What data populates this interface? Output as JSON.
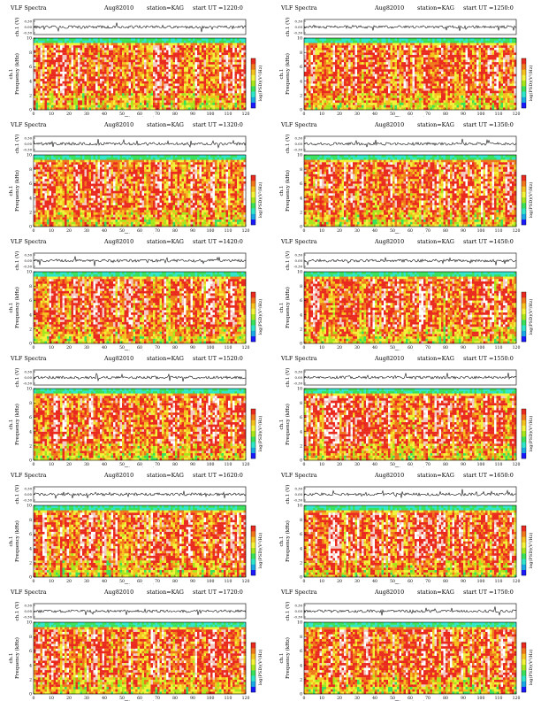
{
  "labels": {
    "title": "VLF Spectra",
    "date": "Aug82010",
    "station": "station=KAG",
    "start_prefix": "start  UT =",
    "trace_ylabel": "ch.1 (V)",
    "spec_ylabel": "Frequency  (kHz)",
    "spec_ylabel_ch": "ch.1",
    "xlabel": "Time  (sec)",
    "cbar_label": "log(PSD)(V²/Hz)"
  },
  "colors": {
    "background": "#ffffff",
    "axis": "#000000",
    "trace": "#111111",
    "spectrogram_palette": [
      "#1a1aff",
      "#19a7e6",
      "#2fe6c8",
      "#39e05a",
      "#a8e61c",
      "#f2f23a",
      "#f6c21e",
      "#f0781a",
      "#ea2a1e",
      "#f4c9c2",
      "#ffffff"
    ]
  },
  "chart_data": [
    {
      "type": "heatmap",
      "panel": "left",
      "row": 1,
      "title": "VLF Spectra",
      "date": "Aug82010",
      "station": "station=KAG",
      "start_ut": "1220:0",
      "xlabel": "Time  (sec)",
      "ylabel": "Frequency  (kHz)",
      "xlim": [
        0,
        120
      ],
      "ylim": [
        0,
        10
      ],
      "trace_ylim": [
        0.3,
        -0.3
      ],
      "xticks": [
        0,
        10,
        20,
        30,
        40,
        50,
        60,
        70,
        80,
        90,
        100,
        110,
        120
      ],
      "yticks": [
        0,
        2,
        4,
        6,
        8,
        10
      ],
      "trace_yticks": [
        "0.30",
        "0.00",
        "-0.30"
      ],
      "colorbar": "log(PSD)(V²/Hz)"
    },
    {
      "type": "heatmap",
      "panel": "right",
      "row": 1,
      "title": "VLF Spectra",
      "date": "Aug82010",
      "station": "station=KAG",
      "start_ut": "1250:0",
      "xlabel": "Time  (sec)",
      "ylabel": "Frequency  (kHz)",
      "xlim": [
        0,
        120
      ],
      "ylim": [
        0,
        10
      ],
      "trace_ylim": [
        0.3,
        -0.3
      ],
      "xticks": [
        0,
        10,
        20,
        30,
        40,
        50,
        60,
        70,
        80,
        90,
        100,
        110,
        120
      ],
      "yticks": [
        0,
        2,
        4,
        6,
        8,
        10
      ],
      "trace_yticks": [
        "0.30",
        "0.00",
        "-0.30"
      ],
      "colorbar": "log(PSD)(V²/Hz)"
    },
    {
      "type": "heatmap",
      "panel": "left",
      "row": 2,
      "title": "VLF Spectra",
      "date": "Aug82010",
      "station": "station=KAG",
      "start_ut": "1320:0",
      "xlabel": "Time  (sec)",
      "ylabel": "Frequency  (kHz)",
      "xlim": [
        0,
        120
      ],
      "ylim": [
        0,
        10
      ],
      "trace_ylim": [
        0.3,
        -0.3
      ],
      "xticks": [
        0,
        10,
        20,
        30,
        40,
        50,
        60,
        70,
        80,
        90,
        100,
        110,
        120
      ],
      "yticks": [
        0,
        2,
        4,
        6,
        8,
        10
      ],
      "trace_yticks": [
        "0.30",
        "0.00",
        "-0.30"
      ],
      "colorbar": "log(PSD)(V²/Hz)"
    },
    {
      "type": "heatmap",
      "panel": "right",
      "row": 2,
      "title": "VLF Spectra",
      "date": "Aug82010",
      "station": "station=KAG",
      "start_ut": "1350:0",
      "xlabel": "Time  (sec)",
      "ylabel": "Frequency  (kHz)",
      "xlim": [
        0,
        120
      ],
      "ylim": [
        0,
        10
      ],
      "trace_ylim": [
        0.3,
        -0.3
      ],
      "xticks": [
        0,
        10,
        20,
        30,
        40,
        50,
        60,
        70,
        80,
        90,
        100,
        110,
        120
      ],
      "yticks": [
        0,
        2,
        4,
        6,
        8,
        10
      ],
      "trace_yticks": [
        "0.30",
        "0.00",
        "-0.30"
      ],
      "colorbar": "log(PSD)(V²/Hz)"
    },
    {
      "type": "heatmap",
      "panel": "left",
      "row": 3,
      "title": "VLF Spectra",
      "date": "Aug82010",
      "station": "station=KAG",
      "start_ut": "1420:0",
      "xlabel": "Time  (sec)",
      "ylabel": "Frequency  (kHz)",
      "xlim": [
        0,
        120
      ],
      "ylim": [
        0,
        10
      ],
      "trace_ylim": [
        0.3,
        -0.3
      ],
      "xticks": [
        0,
        10,
        20,
        30,
        40,
        50,
        60,
        70,
        80,
        90,
        100,
        110,
        120
      ],
      "yticks": [
        0,
        2,
        4,
        6,
        8,
        10
      ],
      "trace_yticks": [
        "0.30",
        "0.00",
        "-0.30"
      ],
      "colorbar": "log(PSD)(V²/Hz)"
    },
    {
      "type": "heatmap",
      "panel": "right",
      "row": 3,
      "title": "VLF Spectra",
      "date": "Aug82010",
      "station": "station=KAG",
      "start_ut": "1450:0",
      "xlabel": "Time  (sec)",
      "ylabel": "Frequency  (kHz)",
      "xlim": [
        0,
        120
      ],
      "ylim": [
        0,
        10
      ],
      "trace_ylim": [
        0.3,
        -0.3
      ],
      "xticks": [
        0,
        10,
        20,
        30,
        40,
        50,
        60,
        70,
        80,
        90,
        100,
        110,
        120
      ],
      "yticks": [
        0,
        2,
        4,
        6,
        8,
        10
      ],
      "trace_yticks": [
        "0.30",
        "0.00",
        "-0.30"
      ],
      "colorbar": "log(PSD)(V²/Hz)"
    },
    {
      "type": "heatmap",
      "panel": "left",
      "row": 4,
      "title": "VLF Spectra",
      "date": "Aug82010",
      "station": "station=KAG",
      "start_ut": "1520:0",
      "xlabel": "Time  (sec)",
      "ylabel": "Frequency  (kHz)",
      "xlim": [
        0,
        120
      ],
      "ylim": [
        0,
        10
      ],
      "trace_ylim": [
        0.3,
        -0.3
      ],
      "xticks": [
        0,
        10,
        20,
        30,
        40,
        50,
        60,
        70,
        80,
        90,
        100,
        110,
        120
      ],
      "yticks": [
        0,
        2,
        4,
        6,
        8,
        10
      ],
      "trace_yticks": [
        "0.30",
        "0.00",
        "-0.30"
      ],
      "colorbar": "log(PSD)(V²/Hz)"
    },
    {
      "type": "heatmap",
      "panel": "right",
      "row": 4,
      "title": "VLF Spectra",
      "date": "Aug82010",
      "station": "station=KAG",
      "start_ut": "1550:0",
      "xlabel": "Time  (sec)",
      "ylabel": "Frequency  (kHz)",
      "xlim": [
        0,
        120
      ],
      "ylim": [
        0,
        10
      ],
      "trace_ylim": [
        0.3,
        -0.3
      ],
      "xticks": [
        0,
        10,
        20,
        30,
        40,
        50,
        60,
        70,
        80,
        90,
        100,
        110,
        120
      ],
      "yticks": [
        0,
        2,
        4,
        6,
        8,
        10
      ],
      "trace_yticks": [
        "0.30",
        "0.00",
        "-0.30"
      ],
      "colorbar": "log(PSD)(V²/Hz)"
    },
    {
      "type": "heatmap",
      "panel": "left",
      "row": 5,
      "title": "VLF Spectra",
      "date": "Aug82010",
      "station": "station=KAG",
      "start_ut": "1620:0",
      "xlabel": "Time  (sec)",
      "ylabel": "Frequency  (kHz)",
      "xlim": [
        0,
        120
      ],
      "ylim": [
        0,
        10
      ],
      "trace_ylim": [
        0.3,
        -0.3
      ],
      "xticks": [
        0,
        10,
        20,
        30,
        40,
        50,
        60,
        70,
        80,
        90,
        100,
        110,
        120
      ],
      "yticks": [
        0,
        2,
        4,
        6,
        8,
        10
      ],
      "trace_yticks": [
        "0.30",
        "0.00",
        "-0.30"
      ],
      "colorbar": "log(PSD)(V²/Hz)"
    },
    {
      "type": "heatmap",
      "panel": "right",
      "row": 5,
      "title": "VLF Spectra",
      "date": "Aug82010",
      "station": "station=KAG",
      "start_ut": "1650:0",
      "xlabel": "Time  (sec)",
      "ylabel": "Frequency  (kHz)",
      "xlim": [
        0,
        120
      ],
      "ylim": [
        0,
        10
      ],
      "trace_ylim": [
        0.3,
        -0.3
      ],
      "xticks": [
        0,
        10,
        20,
        30,
        40,
        50,
        60,
        70,
        80,
        90,
        100,
        110,
        120
      ],
      "yticks": [
        0,
        2,
        4,
        6,
        8,
        10
      ],
      "trace_yticks": [
        "0.30",
        "0.00",
        "-0.30"
      ],
      "colorbar": "log(PSD)(V²/Hz)"
    },
    {
      "type": "heatmap",
      "panel": "left",
      "row": 6,
      "title": "VLF Spectra",
      "date": "Aug82010",
      "station": "station=KAG",
      "start_ut": "1720:0",
      "xlabel": "Time  (sec)",
      "ylabel": "Frequency  (kHz)",
      "xlim": [
        0,
        120
      ],
      "ylim": [
        0,
        10
      ],
      "trace_ylim": [
        0.3,
        -0.3
      ],
      "xticks": [
        0,
        10,
        20,
        30,
        40,
        50,
        60,
        70,
        80,
        90,
        100,
        110,
        120
      ],
      "yticks": [
        0,
        2,
        4,
        6,
        8,
        10
      ],
      "trace_yticks": [
        "0.30",
        "0.00",
        "-0.30"
      ],
      "colorbar": "log(PSD)(V²/Hz)"
    },
    {
      "type": "heatmap",
      "panel": "right",
      "row": 6,
      "title": "VLF Spectra",
      "date": "Aug82010",
      "station": "station=KAG",
      "start_ut": "1750:0",
      "xlabel": "Time  (sec)",
      "ylabel": "Frequency  (kHz)",
      "xlim": [
        0,
        120
      ],
      "ylim": [
        0,
        10
      ],
      "trace_ylim": [
        0.3,
        -0.3
      ],
      "xticks": [
        0,
        10,
        20,
        30,
        40,
        50,
        60,
        70,
        80,
        90,
        100,
        110,
        120
      ],
      "yticks": [
        0,
        2,
        4,
        6,
        8,
        10
      ],
      "trace_yticks": [
        "0.30",
        "0.00",
        "-0.30"
      ],
      "colorbar": "log(PSD)(V²/Hz)"
    }
  ]
}
